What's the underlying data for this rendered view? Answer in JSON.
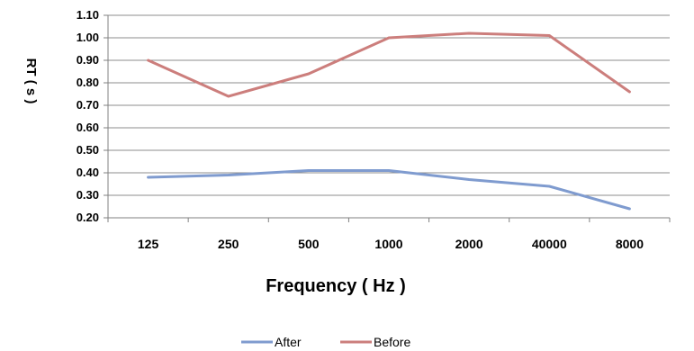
{
  "chart_data": {
    "type": "line",
    "title": "",
    "xlabel": "Frequency ( Hz )",
    "ylabel": "RT ( s )",
    "categories": [
      "125",
      "250",
      "500",
      "1000",
      "2000",
      "40000",
      "8000"
    ],
    "ylim": [
      0.2,
      1.1
    ],
    "yticks": [
      "0.20",
      "0.30",
      "0.40",
      "0.50",
      "0.60",
      "0.70",
      "0.80",
      "0.90",
      "1.00",
      "1.10"
    ],
    "grid": "horizontal",
    "legend_position": "bottom",
    "series": [
      {
        "name": "After",
        "color": "#7f9bcf",
        "values": [
          0.38,
          0.39,
          0.41,
          0.41,
          0.37,
          0.34,
          0.24
        ]
      },
      {
        "name": "Before",
        "color": "#cc7e7c",
        "values": [
          0.9,
          0.74,
          0.84,
          1.0,
          1.02,
          1.01,
          0.76
        ]
      }
    ]
  }
}
